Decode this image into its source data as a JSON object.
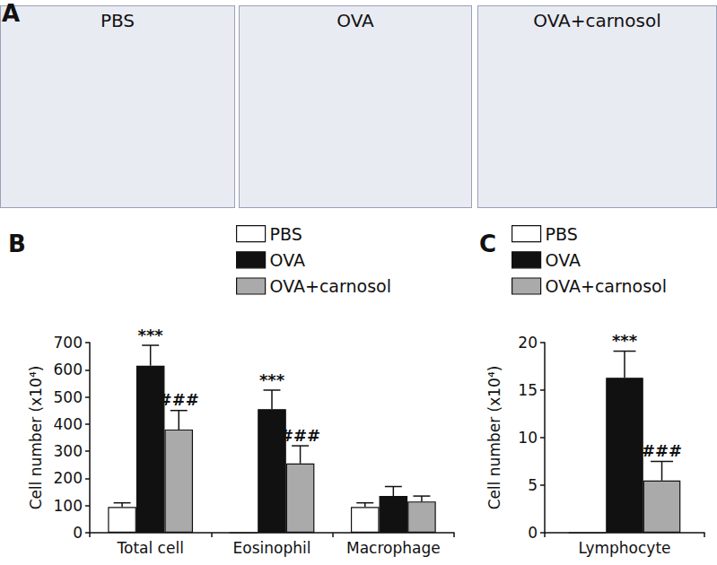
{
  "image_panel": {
    "title": "A",
    "captions": [
      "PBS",
      "OVA",
      "OVA+carnosol"
    ]
  },
  "chart_data": [
    {
      "type": "bar",
      "title": "B",
      "y_label": "Cell number (x10⁴)",
      "categories": [
        "Total cell",
        "Eosinophil",
        "Macrophage"
      ],
      "series": [
        {
          "name": "PBS",
          "color": "#ffffff",
          "values": [
            95,
            0,
            95
          ],
          "error": [
            15,
            0,
            15
          ]
        },
        {
          "name": "OVA",
          "color": "#111111",
          "values": [
            615,
            455,
            135
          ],
          "error": [
            75,
            70,
            35
          ]
        },
        {
          "name": "OVA+carnosol",
          "color": "#aaaaaa",
          "values": [
            380,
            255,
            115
          ],
          "error": [
            70,
            65,
            20
          ]
        }
      ],
      "annotations": [
        {
          "series": "OVA",
          "category": "Total cell",
          "text": "***"
        },
        {
          "series": "OVA+carnosol",
          "category": "Total cell",
          "text": "###"
        },
        {
          "series": "OVA",
          "category": "Eosinophil",
          "text": "***"
        },
        {
          "series": "OVA+carnosol",
          "category": "Eosinophil",
          "text": "###"
        }
      ],
      "ylim": [
        0,
        700
      ],
      "yticks": [
        0,
        100,
        200,
        300,
        400,
        500,
        600,
        700
      ],
      "grid": false,
      "legend": "top"
    },
    {
      "type": "bar",
      "title": "C",
      "y_label": "Cell number (x10⁴)",
      "categories": [
        "Lymphocyte"
      ],
      "series": [
        {
          "name": "PBS",
          "color": "#ffffff",
          "values": [
            0
          ],
          "error": [
            0
          ]
        },
        {
          "name": "OVA",
          "color": "#111111",
          "values": [
            16.3
          ],
          "error": [
            2.8
          ]
        },
        {
          "name": "OVA+carnosol",
          "color": "#aaaaaa",
          "values": [
            5.5
          ],
          "error": [
            2.0
          ]
        }
      ],
      "annotations": [
        {
          "series": "OVA",
          "category": "Lymphocyte",
          "text": "***"
        },
        {
          "series": "OVA+carnosol",
          "category": "Lymphocyte",
          "text": "###"
        }
      ],
      "ylim": [
        0,
        20
      ],
      "yticks": [
        0,
        5,
        10,
        15,
        20
      ],
      "grid": false,
      "legend": "top"
    }
  ]
}
